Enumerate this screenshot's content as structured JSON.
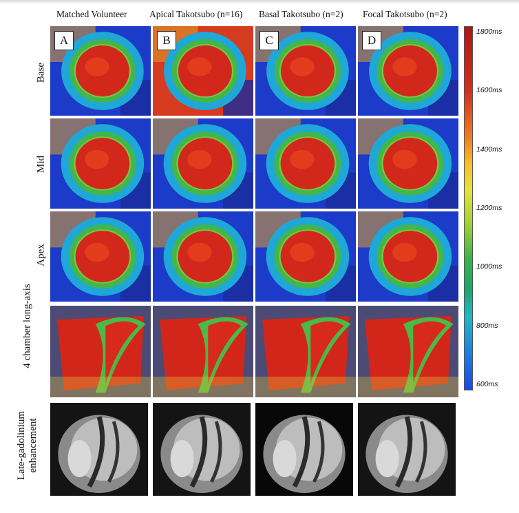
{
  "columns": [
    {
      "label": "Matched Volunteer",
      "letter": "A"
    },
    {
      "label": "Apical Takotsubo (n=16)",
      "letter": "B"
    },
    {
      "label": "Basal Takotsubo (n=2)",
      "letter": "C"
    },
    {
      "label": "Focal Takotsubo  (n=2)",
      "letter": "D"
    }
  ],
  "rows": [
    {
      "label": "Base"
    },
    {
      "label": "Mid"
    },
    {
      "label": "Apex"
    },
    {
      "label": "4 chamber  long-axis"
    },
    {
      "label": "Late-gadolinium enhancement"
    }
  ],
  "colorbar": {
    "ticks": [
      "1800ms",
      "1600ms",
      "1400ms",
      "1200ms",
      "1000ms",
      "800ms",
      "600ms"
    ],
    "colors": {
      "high": "#b01515",
      "mid": "#35b548",
      "low": "#1b46e6"
    }
  }
}
